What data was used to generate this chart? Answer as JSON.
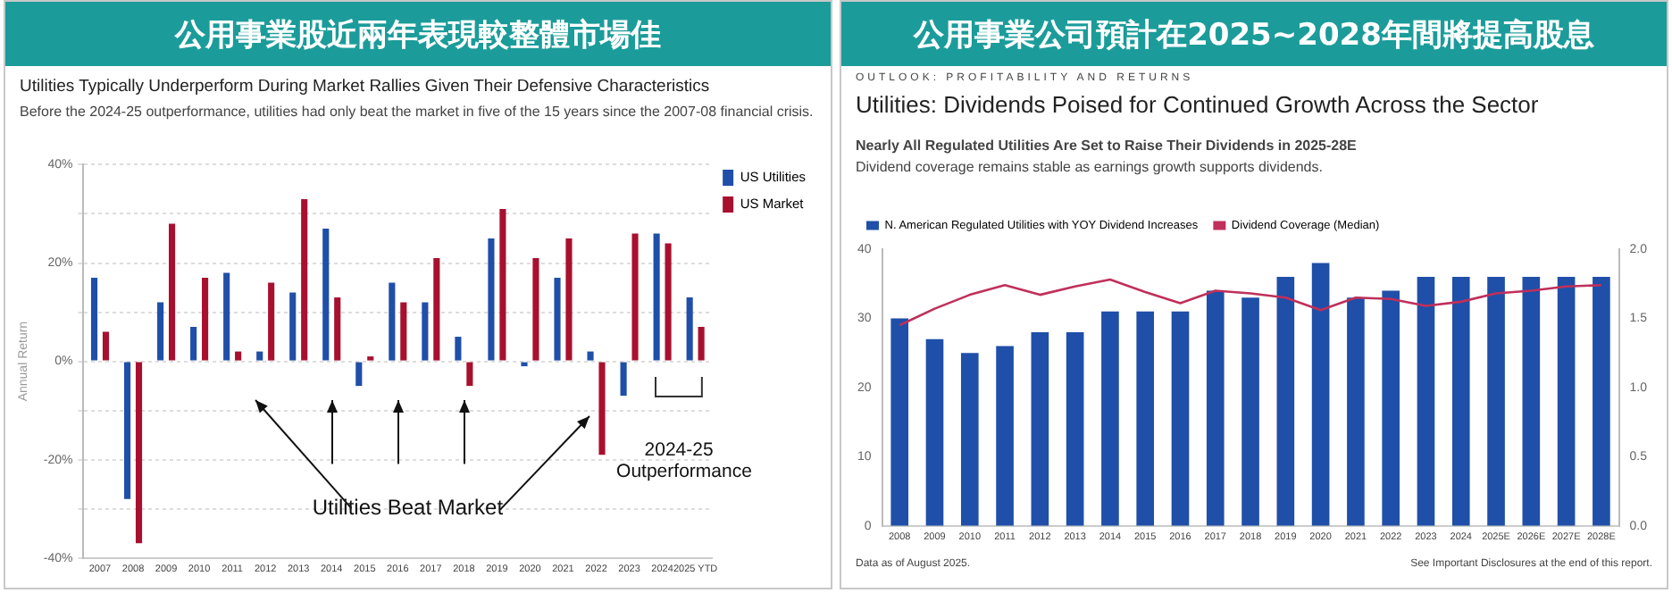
{
  "chart_data": [
    {
      "type": "bar",
      "title": "公用事業股近兩年表現較整體市場佳",
      "subtitle": "Utilities Typically Underperform During Market Rallies Given Their Defensive Characteristics",
      "ylabel": "Annual Return",
      "annotations": [
        "Before the 2024-25 outperformance, utilities had only beat the market in five of the 15 years since the 2007-08 financial crisis.",
        "Utilities Beat Market",
        "2024-25 Outperformance"
      ],
      "categories": [
        "2007",
        "2008",
        "2009",
        "2010",
        "2011",
        "2012",
        "2013",
        "2014",
        "2015",
        "2016",
        "2017",
        "2018",
        "2019",
        "2020",
        "2021",
        "2022",
        "2023",
        "2024",
        "2025 YTD"
      ],
      "series": [
        {
          "name": "US Utilities",
          "color": "#1f4fa8",
          "values": [
            17,
            -28,
            12,
            7,
            18,
            2,
            14,
            27,
            -5,
            16,
            12,
            5,
            25,
            -1,
            17,
            2,
            -7,
            26,
            13
          ]
        },
        {
          "name": "US Market",
          "color": "#a8102f",
          "values": [
            6,
            -37,
            28,
            17,
            2,
            16,
            33,
            13,
            1,
            12,
            21,
            -5,
            31,
            21,
            25,
            -19,
            26,
            24,
            7
          ]
        }
      ],
      "ylim": [
        -40,
        40
      ],
      "yticks": [
        {
          "value": -40,
          "label": "-40%"
        },
        {
          "value": -30,
          "label": null
        },
        {
          "value": -20,
          "label": "-20%"
        },
        {
          "value": -10,
          "label": null
        },
        {
          "value": 0,
          "label": "0%"
        },
        {
          "value": 10,
          "label": null
        },
        {
          "value": 20,
          "label": "20%"
        },
        {
          "value": 30,
          "label": null
        },
        {
          "value": 40,
          "label": "40%"
        }
      ],
      "grid": "y",
      "legend": "top right"
    },
    {
      "type": "bar",
      "title": "公用事業公司預計在2025~2028年間將提高股息",
      "subtitle": "Utilities: Dividends Poised for Continued Growth Across the Sector",
      "annotations": [
        "OUTLOOK: PROFITABILITY AND RETURNS",
        "Nearly All Regulated Utilities Are Set to Raise Their Dividends in 2025-28E",
        "Dividend coverage remains stable as earnings growth supports dividends.",
        "Data as of August 2025.",
        "See Important Disclosures at the end of this report."
      ],
      "categories": [
        "2008",
        "2009",
        "2010",
        "2011",
        "2012",
        "2013",
        "2014",
        "2015",
        "2016",
        "2017",
        "2018",
        "2019",
        "2020",
        "2021",
        "2022",
        "2023",
        "2024",
        "2025E",
        "2026E",
        "2027E",
        "2028E"
      ],
      "series": [
        {
          "name": "N. American Regulated Utilities with YOY Dividend Increases",
          "color": "#1f4fa8",
          "values": [
            30,
            27,
            25,
            26,
            28,
            28,
            31,
            31,
            31,
            34,
            33,
            36,
            38,
            33,
            34,
            36,
            36,
            36,
            36,
            36,
            36
          ]
        },
        {
          "name": "Dividend Coverage (Median)",
          "type": "line",
          "axis": "y2",
          "color": "#c0305a",
          "marker": "none",
          "values": [
            1.45,
            1.57,
            1.67,
            1.74,
            1.67,
            1.73,
            1.78,
            1.69,
            1.61,
            1.7,
            1.68,
            1.65,
            1.56,
            1.65,
            1.64,
            1.59,
            1.62,
            1.68,
            1.7,
            1.73,
            1.74
          ]
        }
      ],
      "ylim": [
        0,
        40
      ],
      "yticks": [
        0,
        10,
        20,
        30,
        40
      ],
      "y2lim": [
        0,
        2
      ],
      "y2ticks": [
        {
          "value": 0,
          "label": "0.0"
        },
        {
          "value": 0.5,
          "label": "0.5"
        },
        {
          "value": 1,
          "label": "1.0"
        },
        {
          "value": 1.5,
          "label": "1.5"
        },
        {
          "value": 2,
          "label": "2.0"
        }
      ],
      "grid": false,
      "legend": "top left"
    }
  ]
}
